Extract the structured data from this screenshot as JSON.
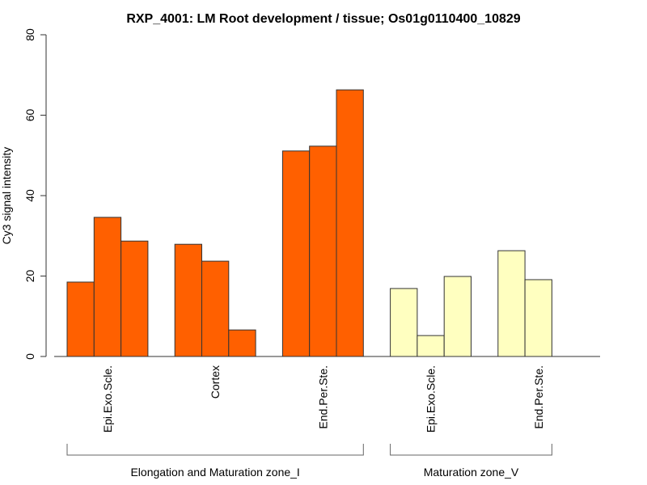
{
  "chart_data": {
    "type": "bar",
    "title": "RXP_4001: LM Root development / tissue; Os01g0110400_10829",
    "xlabel": "",
    "ylabel": "Cy3 signal intensity",
    "ylim": [
      0,
      80
    ],
    "yticks": [
      0,
      20,
      40,
      60,
      80
    ],
    "grid": false,
    "groups": [
      {
        "label": "Elongation and Maturation zone_I",
        "color": "#FF6000",
        "categories": [
          {
            "label": "Epi.Exo.Scle.",
            "values": [
              18.5,
              34.6,
              28.7
            ]
          },
          {
            "label": "Cortex",
            "values": [
              27.9,
              23.7,
              6.6
            ]
          },
          {
            "label": "End.Per.Ste.",
            "values": [
              51.1,
              52.3,
              66.3
            ]
          }
        ]
      },
      {
        "label": "Maturation zone_V",
        "color": "#FFFFC0",
        "categories": [
          {
            "label": "Epi.Exo.Scle.",
            "values": [
              16.9,
              5.2,
              19.9
            ]
          },
          {
            "label": "End.Per.Ste.",
            "values": [
              26.3,
              19.1
            ]
          }
        ]
      }
    ]
  }
}
